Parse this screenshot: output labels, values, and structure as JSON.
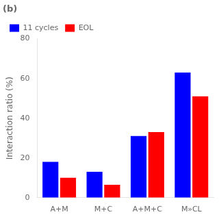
{
  "chart_data": {
    "type": "bar",
    "title": "(b)",
    "categories": [
      "A+M",
      "M+C",
      "A+M+C",
      "M»CL"
    ],
    "series": [
      {
        "name": "11 cycles",
        "color": "#0000ff",
        "values": [
          18,
          13,
          31,
          63
        ]
      },
      {
        "name": "EOL",
        "color": "#ff0000",
        "values": [
          10,
          6.5,
          33,
          51
        ]
      }
    ],
    "ylabel": "Interaction ratio (%)",
    "ylim": [
      0,
      80
    ],
    "yticks": [
      0,
      20,
      40,
      60,
      80
    ],
    "grid": false,
    "legend": "upper left"
  }
}
